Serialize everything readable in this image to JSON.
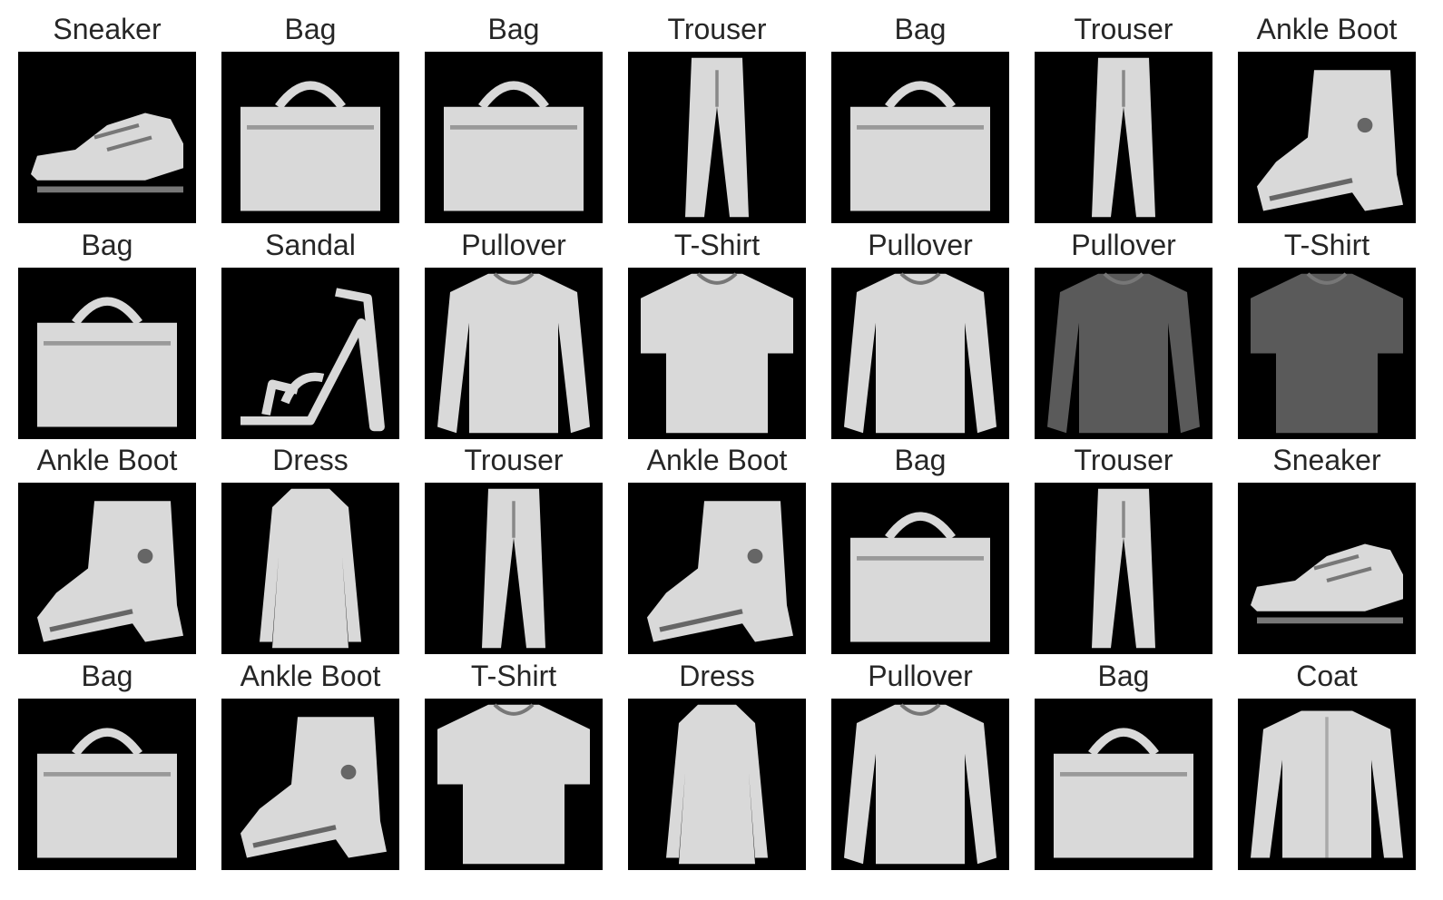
{
  "items": [
    {
      "label": "Sneaker",
      "icon": "sneaker-image"
    },
    {
      "label": "Bag",
      "icon": "bag-image"
    },
    {
      "label": "Bag",
      "icon": "bag-image"
    },
    {
      "label": "Trouser",
      "icon": "trouser-image"
    },
    {
      "label": "Bag",
      "icon": "bag-image"
    },
    {
      "label": "Trouser",
      "icon": "trouser-image"
    },
    {
      "label": "Ankle Boot",
      "icon": "ankle-boot-image"
    },
    {
      "label": "Bag",
      "icon": "bag-image"
    },
    {
      "label": "Sandal",
      "icon": "sandal-image"
    },
    {
      "label": "Pullover",
      "icon": "pullover-image"
    },
    {
      "label": "T-Shirt",
      "icon": "tshirt-image"
    },
    {
      "label": "Pullover",
      "icon": "pullover-image"
    },
    {
      "label": "Pullover",
      "icon": "pullover-image"
    },
    {
      "label": "T-Shirt",
      "icon": "tshirt-image"
    },
    {
      "label": "Ankle Boot",
      "icon": "ankle-boot-image"
    },
    {
      "label": "Dress",
      "icon": "dress-image"
    },
    {
      "label": "Trouser",
      "icon": "trouser-image"
    },
    {
      "label": "Ankle Boot",
      "icon": "ankle-boot-image"
    },
    {
      "label": "Bag",
      "icon": "bag-image"
    },
    {
      "label": "Trouser",
      "icon": "trouser-image"
    },
    {
      "label": "Sneaker",
      "icon": "sneaker-image"
    },
    {
      "label": "Bag",
      "icon": "bag-image"
    },
    {
      "label": "Ankle Boot",
      "icon": "ankle-boot-image"
    },
    {
      "label": "T-Shirt",
      "icon": "tshirt-image"
    },
    {
      "label": "Dress",
      "icon": "dress-image"
    },
    {
      "label": "Pullover",
      "icon": "pullover-image"
    },
    {
      "label": "Bag",
      "icon": "bag-image"
    },
    {
      "label": "Coat",
      "icon": "coat-image"
    }
  ],
  "colors": {
    "background": "#ffffff",
    "tile": "#000000",
    "title": "#262626",
    "garment_light": "#d9d9d9",
    "garment_dark": "#5a5a5a"
  }
}
